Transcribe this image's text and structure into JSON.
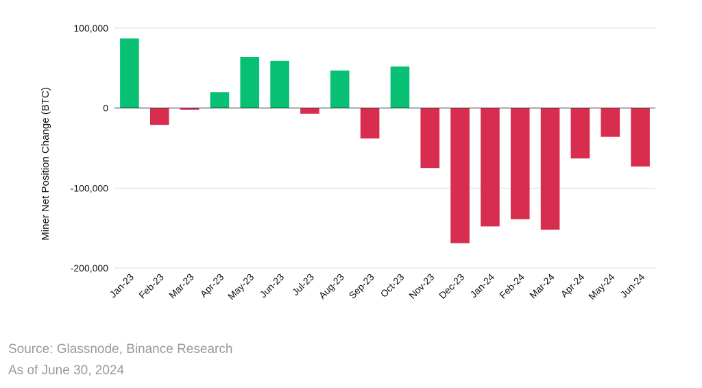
{
  "chart_data": {
    "type": "bar",
    "title": "",
    "xlabel": "",
    "ylabel": "Miner Net Position Change (BTC)",
    "ylim": [
      -200000,
      100000
    ],
    "yticks": [
      100000,
      0,
      -100000,
      -200000
    ],
    "ytick_labels": [
      "100,000",
      "0",
      "-100,000",
      "-200,000"
    ],
    "categories": [
      "Jan-23",
      "Feb-23",
      "Mar-23",
      "Apr-23",
      "May-23",
      "Jun-23",
      "Jul-23",
      "Aug-23",
      "Sep-23",
      "Oct-23",
      "Nov-23",
      "Dec-23",
      "Jan-24",
      "Feb-24",
      "Mar-24",
      "Apr-24",
      "May-24",
      "Jun-24"
    ],
    "values": [
      87000,
      -21000,
      -2000,
      20000,
      64000,
      59000,
      -7000,
      47000,
      -38000,
      52000,
      -75000,
      -169000,
      -148000,
      -139000,
      -152000,
      -63000,
      -36000,
      -73000
    ],
    "positive_color": "#07c073",
    "negative_color": "#d82d4e",
    "gridlines": true
  },
  "footer": {
    "source": "Source: Glassnode, Binance Research",
    "as_of": "As of June 30, 2024"
  }
}
